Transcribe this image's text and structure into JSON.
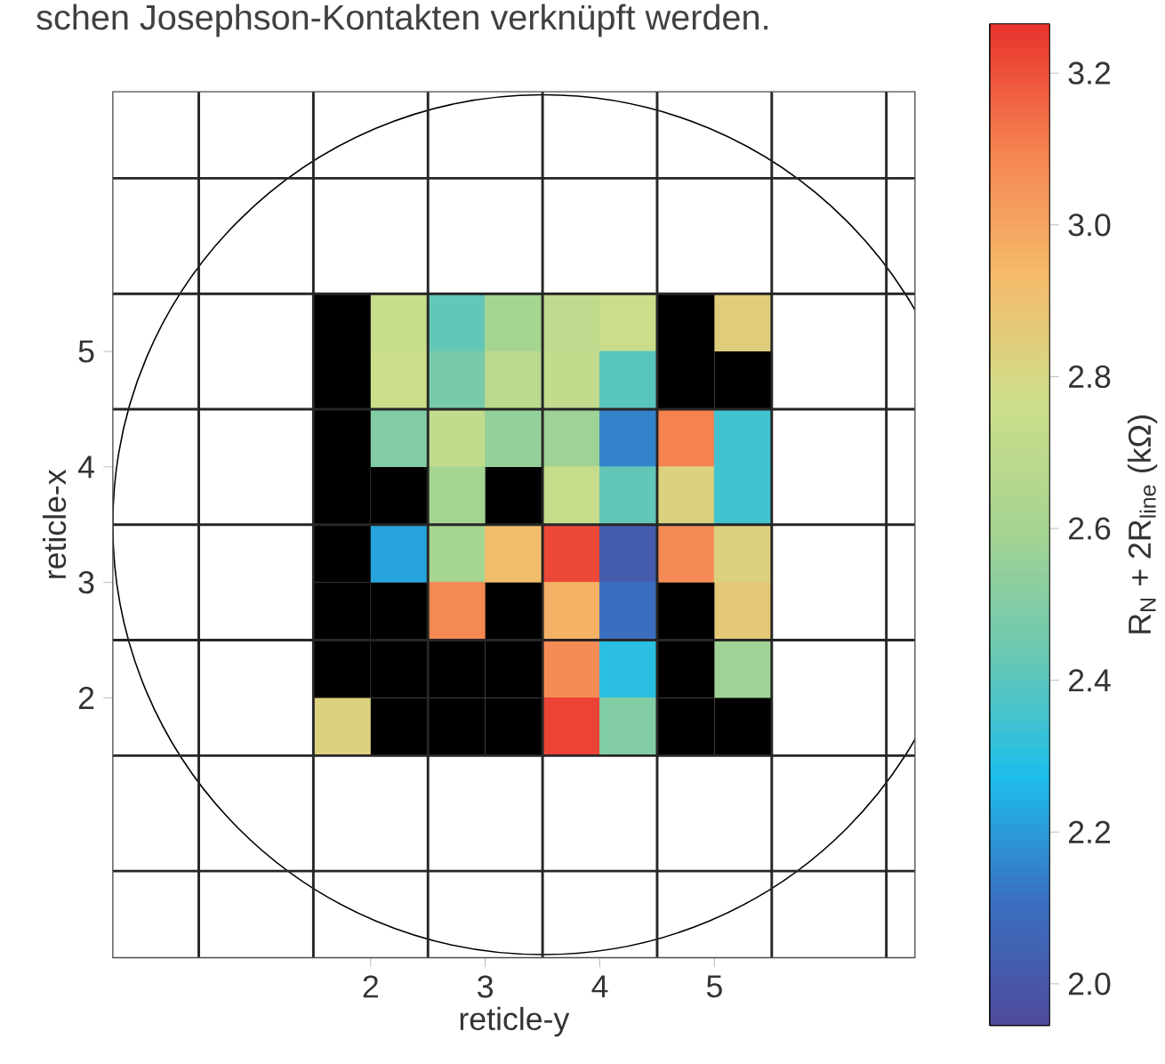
{
  "chart_data": {
    "type": "heatmap",
    "title": "schen Josephson-Kontakten verknüpft werden.",
    "xlabel": "reticle-y",
    "ylabel": "reticle-x",
    "clabel": "R$_{N}$ + 2R$_{line}$ (kΩ)",
    "x": [
      1.75,
      2.25,
      2.75,
      3.25,
      3.75,
      4.25,
      4.75,
      5.25
    ],
    "y": [
      5.25,
      4.75,
      4.25,
      3.75,
      3.25,
      2.75,
      2.25,
      1.75
    ],
    "cells": [
      [
        null,
        2.75,
        2.42,
        2.6,
        2.7,
        2.76,
        null,
        2.85
      ],
      [
        null,
        2.77,
        2.47,
        2.68,
        2.72,
        2.4,
        null,
        null
      ],
      [
        null,
        2.5,
        2.72,
        2.55,
        2.58,
        2.15,
        3.1,
        2.35
      ],
      [
        null,
        null,
        2.6,
        null,
        2.74,
        2.42,
        2.83,
        2.35
      ],
      [
        null,
        2.22,
        2.6,
        2.92,
        3.22,
        2.02,
        3.07,
        2.83
      ],
      [
        null,
        null,
        3.08,
        null,
        2.96,
        2.1,
        null,
        2.87
      ],
      [
        null,
        null,
        null,
        null,
        3.07,
        2.3,
        null,
        2.58
      ],
      [
        2.83,
        null,
        null,
        null,
        3.23,
        2.5,
        null,
        null
      ]
    ],
    "xlim": [
      -0.25,
      6.75
    ],
    "ylim": [
      -0.25,
      7.25
    ],
    "xticks": [
      2,
      3,
      4,
      5
    ],
    "yticks": [
      2,
      3,
      4,
      5
    ],
    "clim": [
      1.945,
      3.265
    ],
    "cticks": [
      {
        "value": 2.0,
        "label": "2.0"
      },
      {
        "value": 2.2,
        "label": "2.2"
      },
      {
        "value": 2.4,
        "label": "2.4"
      },
      {
        "value": 2.6,
        "label": "2.6"
      },
      {
        "value": 2.8,
        "label": "2.8"
      },
      {
        "value": 3.0,
        "label": "3.0"
      },
      {
        "value": 3.2,
        "label": "3.2"
      }
    ],
    "grid": true
  }
}
